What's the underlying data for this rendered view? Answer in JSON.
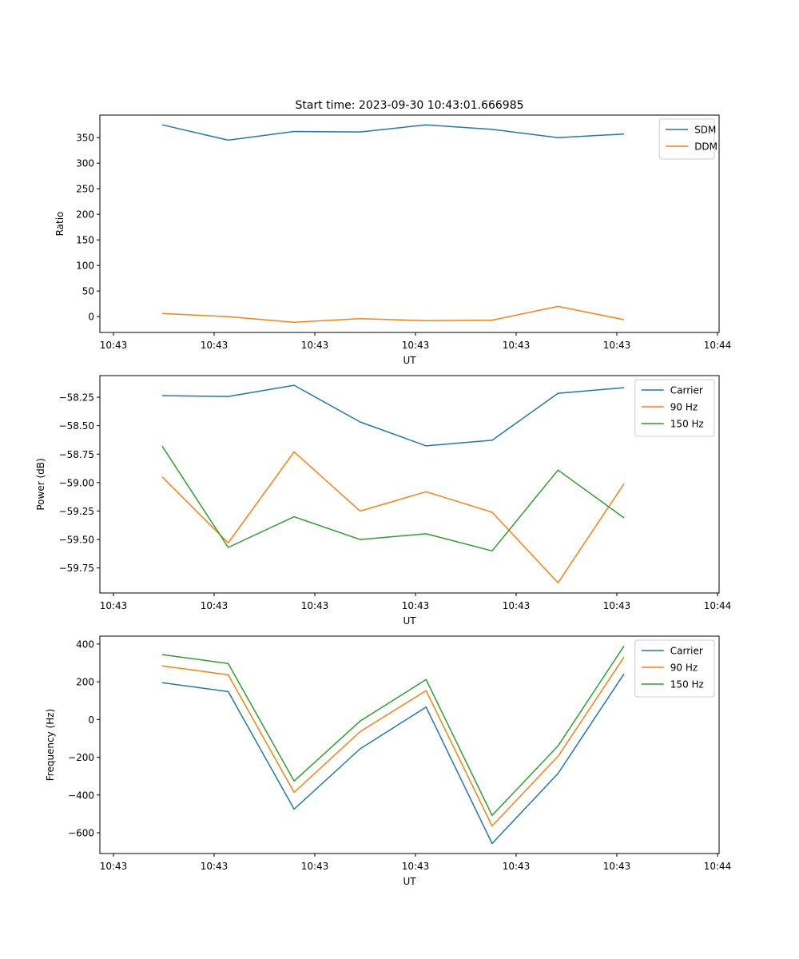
{
  "title": "Start time: 2023-09-30 10:43:01.666985",
  "chart_data": [
    {
      "type": "line",
      "title": "Start time: 2023-09-30 10:43:01.666985",
      "xlabel": "UT",
      "ylabel": "Ratio",
      "x_tick_labels": [
        "10:43",
        "10:43",
        "10:43",
        "10:43",
        "10:43",
        "10:43",
        "10:44"
      ],
      "y_ticks": [
        0,
        50,
        100,
        150,
        200,
        250,
        300,
        350
      ],
      "y_tick_labels": [
        "0",
        "50",
        "100",
        "150",
        "200",
        "250",
        "300",
        "350"
      ],
      "ylim": [
        -31,
        394
      ],
      "legend": "top-right",
      "grid": false,
      "x": [
        1,
        2,
        3,
        4,
        5,
        6,
        7,
        8
      ],
      "series": [
        {
          "name": "SDM",
          "color": "#1f77b4",
          "values": [
            375,
            345,
            362,
            361,
            375,
            366,
            350,
            357
          ]
        },
        {
          "name": "DDM",
          "color": "#ff7f0e",
          "values": [
            6,
            0,
            -11,
            -4,
            -8,
            -7,
            20,
            -6
          ]
        }
      ]
    },
    {
      "type": "line",
      "title": "",
      "xlabel": "UT",
      "ylabel": "Power (dB)",
      "x_tick_labels": [
        "10:43",
        "10:43",
        "10:43",
        "10:43",
        "10:43",
        "10:43",
        "10:44"
      ],
      "y_ticks": [
        -58.25,
        -58.5,
        -58.75,
        -59.0,
        -59.25,
        -59.5,
        -59.75
      ],
      "y_tick_labels": [
        "−58.25",
        "−58.50",
        "−58.75",
        "−59.00",
        "−59.25",
        "−59.50",
        "−59.75"
      ],
      "ylim": [
        -59.97,
        -58.06
      ],
      "legend": "top-right",
      "grid": false,
      "x": [
        1,
        2,
        3,
        4,
        5,
        6,
        7,
        8
      ],
      "series": [
        {
          "name": "Carrier",
          "color": "#1f77b4",
          "values": [
            -58.236,
            -58.243,
            -58.145,
            -58.467,
            -58.677,
            -58.628,
            -58.215,
            -58.166
          ]
        },
        {
          "name": "90 Hz",
          "color": "#ff7f0e",
          "values": [
            -58.95,
            -59.53,
            -58.73,
            -59.25,
            -59.08,
            -59.26,
            -59.88,
            -59.01
          ]
        },
        {
          "name": "150 Hz",
          "color": "#2ca02c",
          "values": [
            -58.68,
            -59.57,
            -59.3,
            -59.5,
            -59.45,
            -59.6,
            -58.89,
            -59.31
          ]
        }
      ]
    },
    {
      "type": "line",
      "title": "",
      "xlabel": "UT",
      "ylabel": "Frequency (Hz)",
      "x_tick_labels": [
        "10:43",
        "10:43",
        "10:43",
        "10:43",
        "10:43",
        "10:43",
        "10:44"
      ],
      "y_ticks": [
        -600,
        -400,
        -200,
        0,
        200,
        400
      ],
      "y_tick_labels": [
        "−600",
        "−400",
        "−200",
        "0",
        "200",
        "400"
      ],
      "ylim": [
        -710,
        442
      ],
      "legend": "top-right",
      "grid": false,
      "x": [
        1,
        2,
        3,
        4,
        5,
        6,
        7,
        8
      ],
      "series": [
        {
          "name": "Carrier",
          "color": "#1f77b4",
          "values": [
            195,
            148,
            -475,
            -155,
            66,
            -657,
            -286,
            242
          ]
        },
        {
          "name": "90 Hz",
          "color": "#ff7f0e",
          "values": [
            284,
            237,
            -386,
            -64,
            153,
            -564,
            -195,
            331
          ]
        },
        {
          "name": "150 Hz",
          "color": "#2ca02c",
          "values": [
            344,
            297,
            -326,
            -8,
            212,
            -508,
            -140,
            390
          ]
        }
      ]
    }
  ]
}
